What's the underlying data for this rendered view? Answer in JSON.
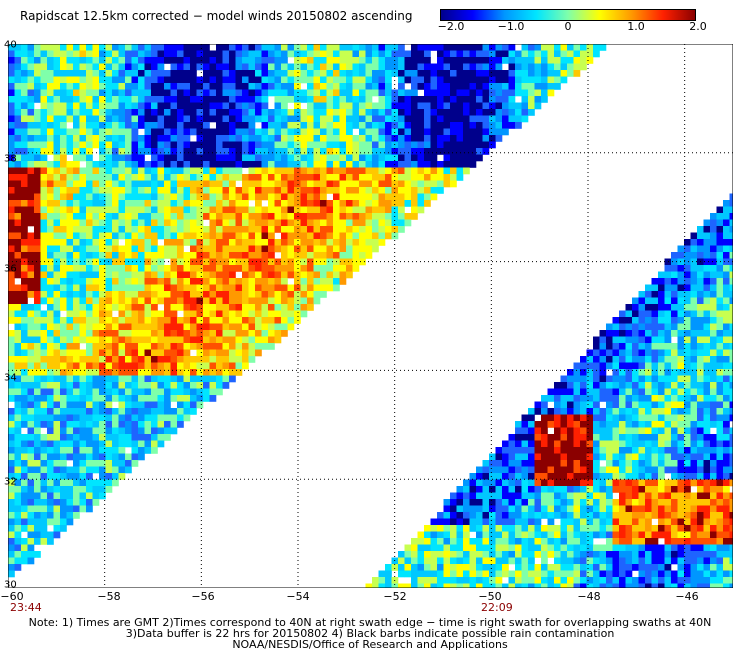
{
  "title": "Rapidscat 12.5km corrected − model winds 20150802 ascending",
  "colorbar": {
    "ticks": [
      "−2.0",
      "−1.0",
      "0",
      "1.0",
      "2.0"
    ],
    "range": [
      -2.0,
      2.0
    ],
    "colors": [
      "#00008b",
      "#0000ff",
      "#0096ff",
      "#00e5ff",
      "#7fffaa",
      "#ffff00",
      "#ff9900",
      "#ff2000",
      "#8b0000"
    ]
  },
  "map": {
    "lon_range": [
      -60,
      -45
    ],
    "lat_range": [
      30,
      40
    ],
    "x_labels": [
      "−60",
      "−58",
      "−56",
      "−54",
      "−52",
      "−50",
      "−48",
      "−46"
    ],
    "y_labels": [
      "40",
      "38",
      "36",
      "34",
      "32",
      "30"
    ],
    "swath_times": [
      {
        "label": "23:44",
        "lon": -60
      },
      {
        "label": "22:09",
        "lon": -50
      }
    ]
  },
  "notes": [
    "Note: 1) Times are GMT 2)Times correspond to 40N at right swath edge − time is right swath for overlapping swaths at 40N",
    "3)Data buffer is 22 hrs for 20150802 4) Black barbs indicate possible rain contamination",
    "NOAA/NESDIS/Office of Research and Applications"
  ]
}
